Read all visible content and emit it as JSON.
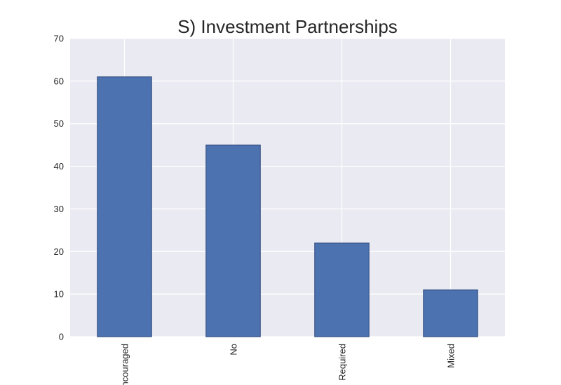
{
  "chart_data": {
    "type": "bar",
    "title": "S) Investment Partnerships",
    "xlabel": "",
    "ylabel": "",
    "categories": [
      "Encouraged",
      "No",
      "Required",
      "Mixed"
    ],
    "values": [
      61,
      45,
      22,
      11
    ],
    "ylim": [
      0,
      70
    ],
    "yticks": [
      0,
      10,
      20,
      30,
      40,
      50,
      60,
      70
    ],
    "grid": true,
    "legend": "none",
    "x_tick_rotation": 90,
    "bar_color": "#4c72b0",
    "background_color": "#eaeaf2"
  }
}
